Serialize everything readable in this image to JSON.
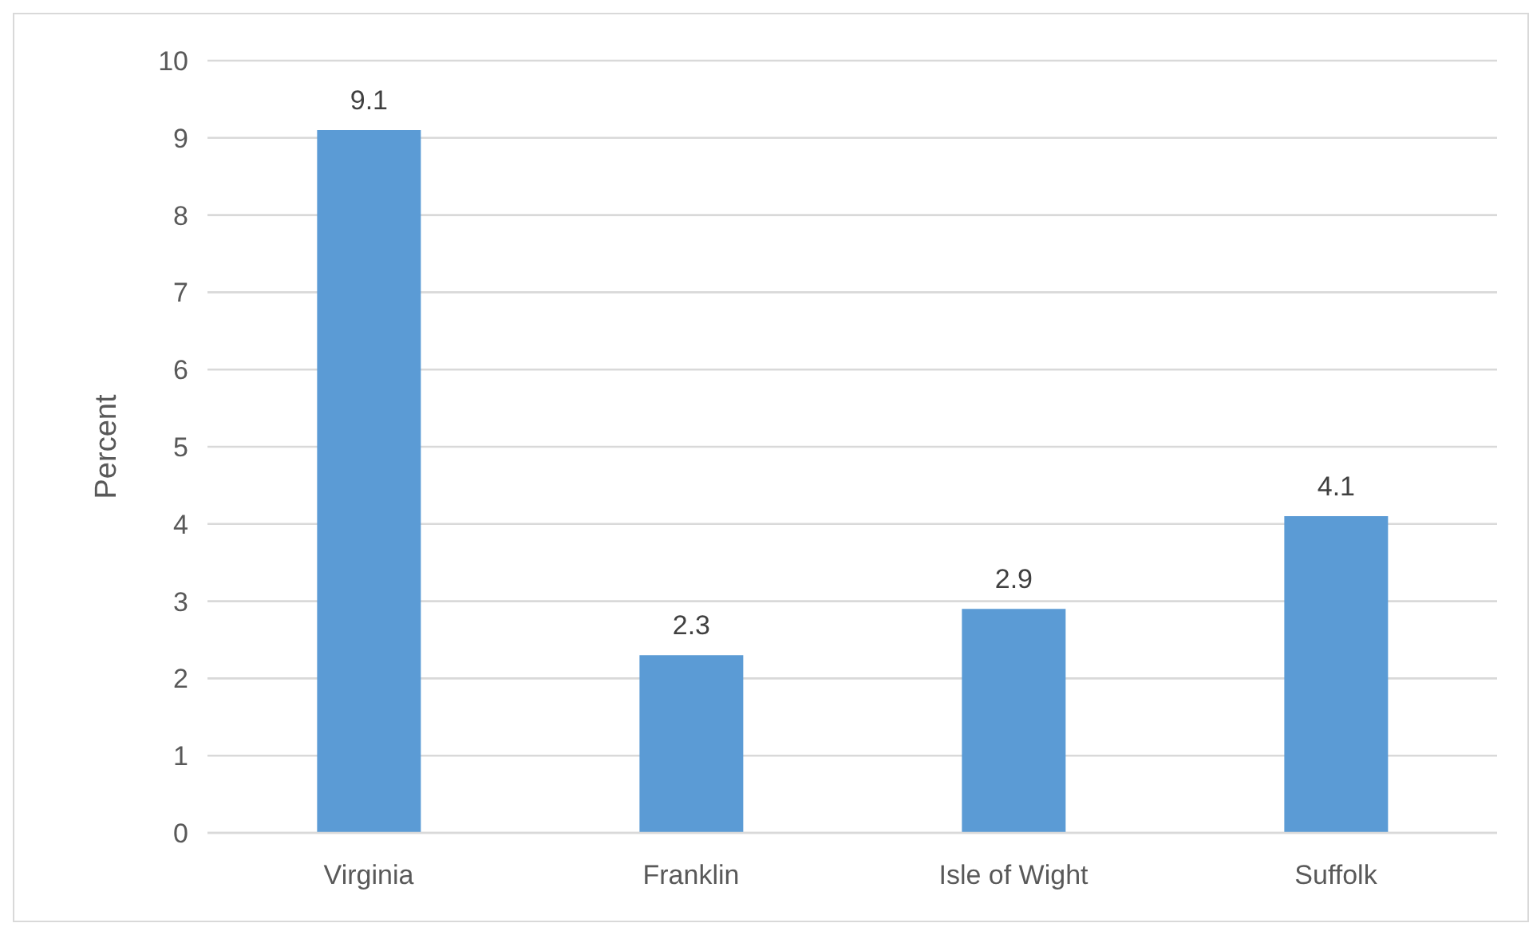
{
  "chart_data": {
    "type": "bar",
    "ylabel": "Percent",
    "categories": [
      "Virginia",
      "Franklin",
      "Isle of Wight",
      "Suffolk"
    ],
    "values": [
      9.1,
      2.3,
      2.9,
      4.1
    ],
    "color": "#5b9bd5",
    "ylim": [
      0,
      10
    ],
    "yticks": [
      0,
      1,
      2,
      3,
      4,
      5,
      6,
      7,
      8,
      9,
      10
    ],
    "grid": "y",
    "data_labels": true
  }
}
